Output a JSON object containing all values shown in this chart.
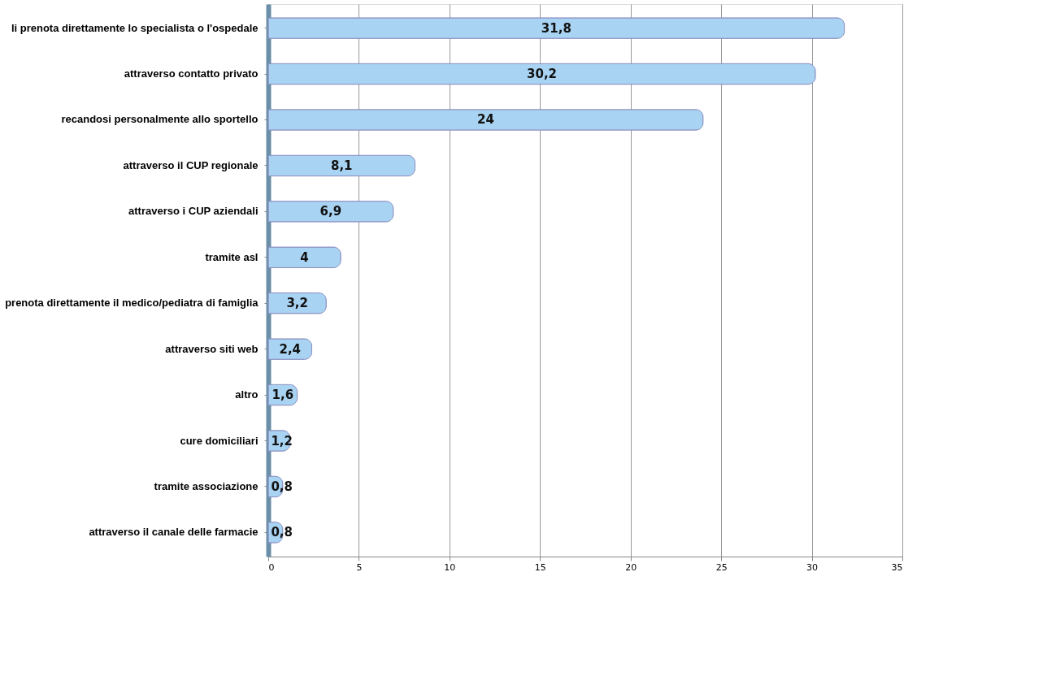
{
  "chart_data": {
    "type": "bar",
    "orientation": "horizontal",
    "categories": [
      "li prenota direttamente lo specialista o l'ospedale",
      "attraverso contatto privato",
      "recandosi personalmente allo sportello",
      "attraverso il CUP regionale",
      "attraverso i CUP aziendali",
      "tramite asl",
      "prenota direttamente il medico/pediatra di famiglia",
      "attraverso siti web",
      "altro",
      "cure domiciliari",
      "tramite associazione",
      "attraverso il canale delle farmacie"
    ],
    "values": [
      31.8,
      30.2,
      24,
      8.1,
      6.9,
      4,
      3.2,
      2.4,
      1.6,
      1.2,
      0.8,
      0.8
    ],
    "value_labels": [
      "31,8",
      "30,2",
      "24",
      "8,1",
      "6,9",
      "4",
      "3,2",
      "2,4",
      "1,6",
      "1,2",
      "0,8",
      "0,8"
    ],
    "color": "#a9d3f2",
    "xlim": [
      0,
      35
    ],
    "xticks": [
      0,
      5,
      10,
      15,
      20,
      25,
      30,
      35
    ],
    "grid": "x"
  }
}
